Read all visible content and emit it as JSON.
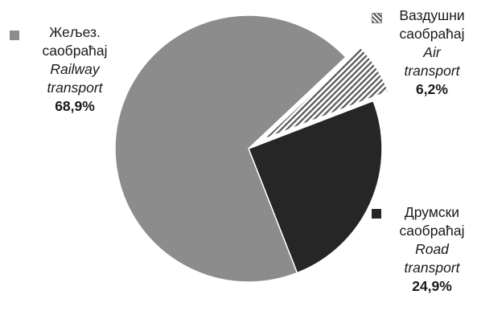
{
  "chart_data": {
    "type": "pie",
    "slices": [
      {
        "key": "railway",
        "label_sr_line1": "Жељез.",
        "label_sr_line2": "саобраћај",
        "label_en_line1": "Railway",
        "label_en_line2": "transport",
        "value": 68.9,
        "value_label": "68,9%",
        "color": "#8c8c8c",
        "pattern": "solid"
      },
      {
        "key": "road",
        "label_sr_line1": "Друмски",
        "label_sr_line2": "саобраћај",
        "label_en_line1": "Road",
        "label_en_line2": "transport",
        "value": 24.9,
        "value_label": "24,9%",
        "color": "#262626",
        "pattern": "solid"
      },
      {
        "key": "air",
        "label_sr_line1": "Ваздушни",
        "label_sr_line2": "саобраћај",
        "label_en_line1": "Air",
        "label_en_line2": "transport",
        "value": 6.2,
        "value_label": "6,2%",
        "color": "#555555",
        "pattern": "hatch",
        "exploded": true
      }
    ]
  }
}
